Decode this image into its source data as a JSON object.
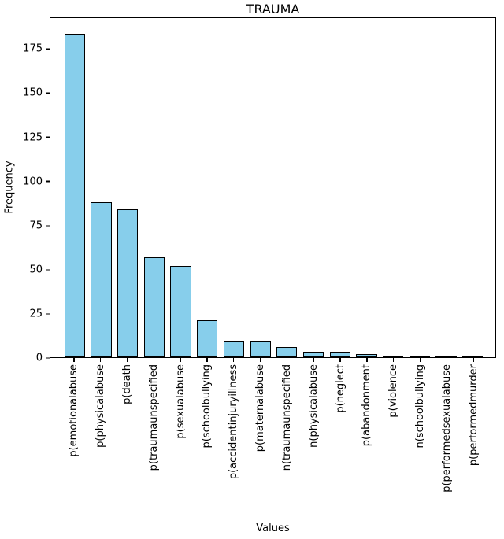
{
  "chart_data": {
    "type": "bar",
    "title": "TRAUMA",
    "xlabel": "Values",
    "ylabel": "Frequency",
    "categories": [
      "p(emotionalabuse",
      "p(physicalabuse",
      "p(death",
      "p(traumaunspecified",
      "p(sexualabuse",
      "p(schoolbullying",
      "p(accidentinjuryillness",
      "p(maternalabuse",
      "n(traumaunspecified",
      "n(physicalabuse",
      "p(neglect",
      "p(abandonment",
      "p(violence",
      "n(schoolbullying",
      "p(performedsexualabuse",
      "p(performedmurder"
    ],
    "values": [
      184,
      88,
      84,
      57,
      52,
      21,
      9,
      9,
      6,
      3,
      3,
      2,
      1,
      1,
      1,
      1
    ],
    "yticks": [
      0,
      25,
      50,
      75,
      100,
      125,
      150,
      175
    ],
    "ylim": [
      0,
      193
    ],
    "grid": false,
    "legend_position": "none",
    "colors": {
      "bar_fill": "#87CEEB",
      "bar_edge": "#000000",
      "text": "#000000",
      "background": "#ffffff"
    }
  }
}
